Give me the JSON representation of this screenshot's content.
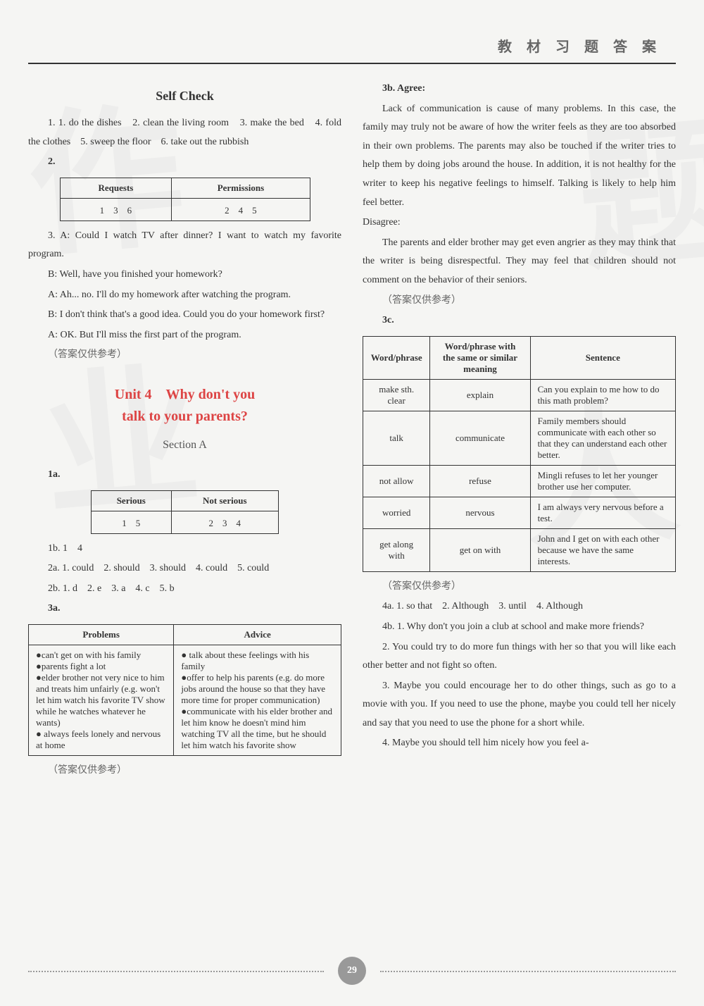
{
  "header": "教 材 习 题 答 案",
  "page_number": "29",
  "watermark_chars": [
    "作",
    "业",
    "题",
    "人"
  ],
  "left": {
    "self_check_title": "Self Check",
    "q1_intro": "1. 1. do the dishes　2. clean the living room　3. make the bed　4. fold the clothes　5. sweep the floor　6. take out the rubbish",
    "q2_label": "2.",
    "table_rp": {
      "headers": [
        "Requests",
        "Permissions"
      ],
      "row": [
        "1　3　6",
        "2　4　5"
      ]
    },
    "q3_lines": [
      "3. A: Could I watch TV after dinner? I want to watch my favorite program.",
      "B: Well, have you finished your homework?",
      "A: Ah... no. I'll do my homework after watching the program.",
      "B: I don't think that's a good idea. Could you do your homework first?",
      "A: OK. But I'll miss the first part of the program."
    ],
    "note1": "（答案仅供参考）",
    "unit_title_1": "Unit 4　Why don't you",
    "unit_title_2": "talk to your parents?",
    "section_a": "Section A",
    "q1a": "1a.",
    "table_serious": {
      "headers": [
        "Serious",
        "Not serious"
      ],
      "row": [
        "1　5",
        "2　3　4"
      ]
    },
    "q1b": "1b. 1　4",
    "q2a": "2a. 1. could　2. should　3. should　4. could　5. could",
    "q2b": "2b. 1. d　2. e　3. a　4. c　5. b",
    "q3a": "3a.",
    "table_pa": {
      "headers": [
        "Problems",
        "Advice"
      ],
      "problems": "●can't get on with his family\n●parents fight a lot\n●elder brother not very nice to him and treats him unfairly (e.g. won't let him watch his favorite TV show while he watches whatever he wants)\n● always feels lonely and nervous at home",
      "advice": "● talk about these feelings with his family\n●offer to help his parents (e.g. do more jobs around the house so that they have more time for proper communication)\n●communicate with his elder brother and let him know he doesn't mind him watching TV all the time, but he should let him watch his favorite show"
    },
    "note2": "（答案仅供参考）"
  },
  "right": {
    "q3b_label": "3b. Agree:",
    "agree_text": "Lack of communication is cause of many problems. In this case, the family may truly not be aware of how the writer feels as they are too absorbed in their own problems. The parents may also be touched if the writer tries to help them by doing jobs around the house. In addition, it is not healthy for the writer to keep his negative feelings to himself. Talking is likely to help him feel better.",
    "disagree_label": "Disagree:",
    "disagree_text": "The parents and elder brother may get even angrier as they may think that the writer is being disrespectful. They may feel that children should not comment on the behavior of their seniors.",
    "note3": "（答案仅供参考）",
    "q3c": "3c.",
    "table_3c": {
      "headers": [
        "Word/phrase",
        "Word/phrase with the same or similar meaning",
        "Sentence"
      ],
      "rows": [
        [
          "make sth. clear",
          "explain",
          "Can you explain to me how to do this math problem?"
        ],
        [
          "talk",
          "communicate",
          "Family members should communicate with each other so that they can understand each other better."
        ],
        [
          "not allow",
          "refuse",
          "Mingli refuses to let her younger brother use her computer."
        ],
        [
          "worried",
          "nervous",
          "I am always very nervous before a test."
        ],
        [
          "get along with",
          "get on with",
          "John and I get on with each other because we have the same interests."
        ]
      ]
    },
    "note4": "（答案仅供参考）",
    "q4a": "4a. 1. so that　2. Although　3. until　4. Although",
    "q4b_1": "4b. 1. Why don't you join a club at school and make more friends?",
    "q4b_2": "2. You could try to do more fun things with her so that you will like each other better and not fight so often.",
    "q4b_3": "3. Maybe you could encourage her to do other things, such as go to a movie with you. If you need to use the phone, maybe you could tell her nicely and say that you need to use the phone for a short while.",
    "q4b_4": "4. Maybe you should tell him nicely how you feel a-"
  }
}
